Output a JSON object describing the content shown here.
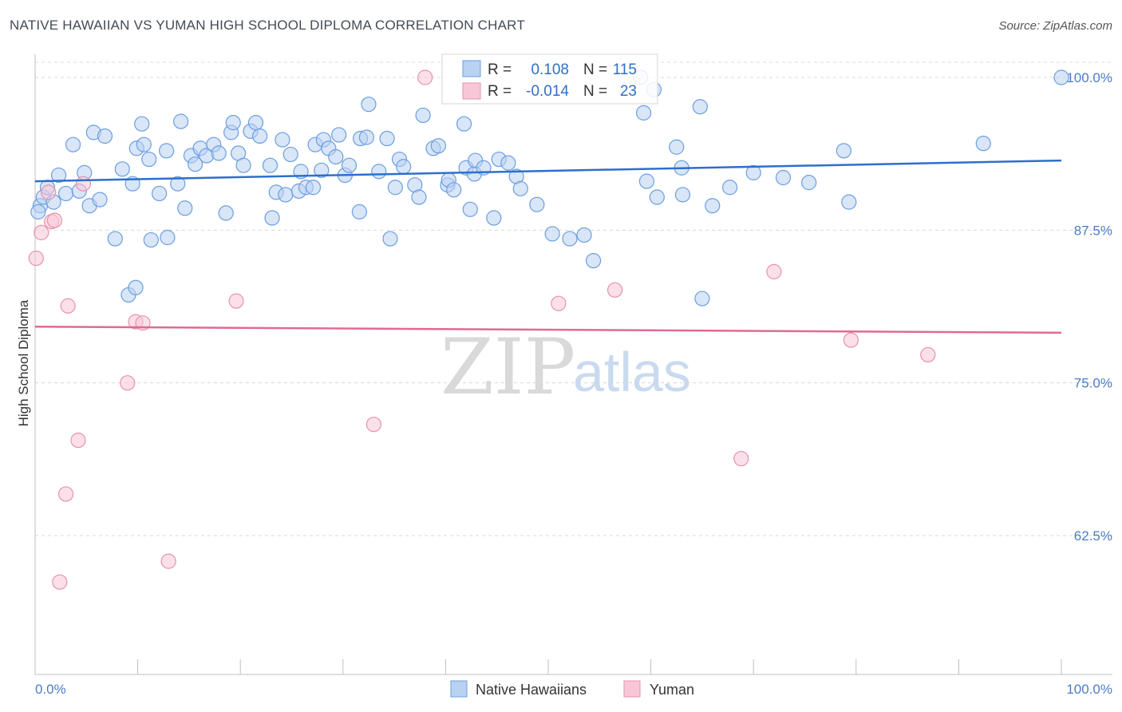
{
  "title": "NATIVE HAWAIIAN VS YUMAN HIGH SCHOOL DIPLOMA CORRELATION CHART",
  "source": "Source: ZipAtlas.com",
  "watermark": {
    "zip": "ZIP",
    "atlas": "atlas"
  },
  "colors": {
    "blue": "#6a9ee0",
    "blue_fill": "#b9d2f2",
    "blue_line": "#2d6fcc",
    "pink": "#e890ae",
    "pink_fill": "#f8c7d7",
    "pink_line": "#e06b90",
    "grid": "#d8d8d8",
    "tick_text": "#4a7cc7"
  },
  "legend": {
    "rows": [
      {
        "r_label": "R =",
        "r_value": "0.108",
        "n_label": "N =",
        "n_value": "115"
      },
      {
        "r_label": "R =",
        "r_value": "-0.014",
        "n_label": "N =",
        "n_value": "23"
      }
    ]
  },
  "bottom_legend": [
    "Native Hawaiians",
    "Yuman"
  ],
  "chart_data": {
    "type": "scatter",
    "title": "NATIVE HAWAIIAN VS YUMAN HIGH SCHOOL DIPLOMA CORRELATION CHART",
    "xlabel": "",
    "ylabel": "High School Diploma",
    "xlim": [
      0,
      100
    ],
    "ylim": [
      52.5,
      102.5
    ],
    "x_tick_labels": [
      "0.0%",
      "100.0%"
    ],
    "y_ticks": [
      62.5,
      75.0,
      87.5,
      100.0
    ],
    "y_tick_labels": [
      "62.5%",
      "75.0%",
      "87.5%",
      "100.0%"
    ],
    "grid": true,
    "series": [
      {
        "name": "Native Hawaiians",
        "r": 0.108,
        "n": 115,
        "trend": {
          "x": [
            0,
            100
          ],
          "y": [
            91.5,
            93.2
          ]
        },
        "points": [
          [
            0.5,
            89.5
          ],
          [
            0.8,
            90.2
          ],
          [
            1.2,
            91.0
          ],
          [
            1.8,
            89.8
          ],
          [
            2.3,
            92.0
          ],
          [
            3.0,
            90.5
          ],
          [
            3.7,
            94.5
          ],
          [
            4.3,
            90.7
          ],
          [
            4.8,
            92.2
          ],
          [
            5.3,
            89.5
          ],
          [
            5.7,
            95.5
          ],
          [
            6.3,
            90.0
          ],
          [
            6.8,
            95.2
          ],
          [
            7.8,
            86.8
          ],
          [
            8.5,
            92.5
          ],
          [
            9.1,
            82.2
          ],
          [
            9.5,
            91.3
          ],
          [
            9.8,
            82.8
          ],
          [
            9.9,
            94.2
          ],
          [
            10.4,
            96.2
          ],
          [
            10.6,
            94.5
          ],
          [
            11.1,
            93.3
          ],
          [
            11.3,
            86.7
          ],
          [
            12.1,
            90.5
          ],
          [
            12.8,
            94.0
          ],
          [
            12.9,
            86.9
          ],
          [
            13.9,
            91.3
          ],
          [
            14.2,
            96.4
          ],
          [
            14.6,
            89.3
          ],
          [
            15.2,
            93.6
          ],
          [
            15.6,
            92.9
          ],
          [
            16.1,
            94.2
          ],
          [
            16.7,
            93.6
          ],
          [
            17.4,
            94.5
          ],
          [
            17.9,
            93.8
          ],
          [
            18.6,
            88.9
          ],
          [
            19.1,
            95.5
          ],
          [
            19.3,
            96.3
          ],
          [
            19.8,
            93.8
          ],
          [
            20.3,
            92.8
          ],
          [
            21.0,
            95.6
          ],
          [
            21.5,
            96.3
          ],
          [
            21.9,
            95.2
          ],
          [
            22.9,
            92.8
          ],
          [
            23.1,
            88.5
          ],
          [
            23.5,
            90.6
          ],
          [
            24.1,
            94.9
          ],
          [
            24.4,
            90.4
          ],
          [
            24.9,
            93.7
          ],
          [
            25.7,
            90.7
          ],
          [
            25.9,
            92.3
          ],
          [
            26.4,
            91.0
          ],
          [
            27.1,
            91.0
          ],
          [
            27.3,
            94.5
          ],
          [
            27.9,
            92.4
          ],
          [
            28.1,
            94.9
          ],
          [
            28.6,
            94.2
          ],
          [
            29.3,
            93.5
          ],
          [
            29.6,
            95.3
          ],
          [
            30.2,
            92.0
          ],
          [
            30.6,
            92.8
          ],
          [
            31.6,
            89.0
          ],
          [
            31.7,
            95.0
          ],
          [
            32.3,
            95.1
          ],
          [
            32.5,
            97.8
          ],
          [
            33.5,
            92.3
          ],
          [
            34.3,
            95.0
          ],
          [
            34.6,
            86.8
          ],
          [
            35.1,
            91.0
          ],
          [
            35.5,
            93.3
          ],
          [
            35.9,
            92.7
          ],
          [
            37.0,
            91.2
          ],
          [
            37.4,
            90.2
          ],
          [
            37.8,
            96.9
          ],
          [
            38.8,
            94.2
          ],
          [
            39.3,
            94.4
          ],
          [
            40.2,
            91.2
          ],
          [
            40.3,
            91.6
          ],
          [
            40.8,
            90.8
          ],
          [
            41.8,
            96.2
          ],
          [
            42.0,
            92.6
          ],
          [
            42.4,
            89.2
          ],
          [
            42.8,
            92.1
          ],
          [
            42.9,
            93.2
          ],
          [
            43.7,
            92.6
          ],
          [
            44.7,
            88.5
          ],
          [
            45.2,
            93.3
          ],
          [
            46.1,
            93.0
          ],
          [
            46.9,
            91.9
          ],
          [
            47.3,
            90.9
          ],
          [
            48.9,
            89.6
          ],
          [
            50.4,
            87.2
          ],
          [
            52.1,
            86.8
          ],
          [
            53.5,
            87.1
          ],
          [
            54.4,
            85.0
          ],
          [
            59.0,
            100.0
          ],
          [
            59.3,
            97.1
          ],
          [
            60.3,
            99.0
          ],
          [
            59.6,
            91.5
          ],
          [
            60.6,
            90.2
          ],
          [
            62.5,
            94.3
          ],
          [
            63.0,
            92.6
          ],
          [
            63.1,
            90.4
          ],
          [
            64.8,
            97.6
          ],
          [
            65.0,
            81.9
          ],
          [
            66.0,
            89.5
          ],
          [
            67.7,
            91.0
          ],
          [
            70.0,
            92.2
          ],
          [
            72.9,
            91.8
          ],
          [
            75.4,
            91.4
          ],
          [
            78.8,
            94.0
          ],
          [
            79.3,
            89.8
          ],
          [
            92.4,
            94.6
          ],
          [
            100.0,
            100.0
          ],
          [
            0.3,
            89.0
          ]
        ]
      },
      {
        "name": "Yuman",
        "r": -0.014,
        "n": 23,
        "trend": {
          "x": [
            0,
            100
          ],
          "y": [
            79.6,
            79.1
          ]
        },
        "points": [
          [
            0.1,
            85.2
          ],
          [
            0.6,
            87.3
          ],
          [
            1.3,
            90.6
          ],
          [
            1.6,
            88.2
          ],
          [
            1.9,
            88.3
          ],
          [
            2.4,
            58.7
          ],
          [
            3.0,
            65.9
          ],
          [
            3.2,
            81.3
          ],
          [
            4.2,
            70.3
          ],
          [
            4.7,
            91.3
          ],
          [
            9.0,
            75.0
          ],
          [
            9.8,
            80.0
          ],
          [
            10.5,
            79.9
          ],
          [
            13.0,
            60.4
          ],
          [
            19.6,
            81.7
          ],
          [
            33.0,
            71.6
          ],
          [
            38.0,
            100.0
          ],
          [
            51.0,
            81.5
          ],
          [
            56.5,
            82.6
          ],
          [
            68.8,
            68.8
          ],
          [
            72.0,
            84.1
          ],
          [
            79.5,
            78.5
          ],
          [
            87.0,
            77.3
          ]
        ]
      }
    ]
  }
}
